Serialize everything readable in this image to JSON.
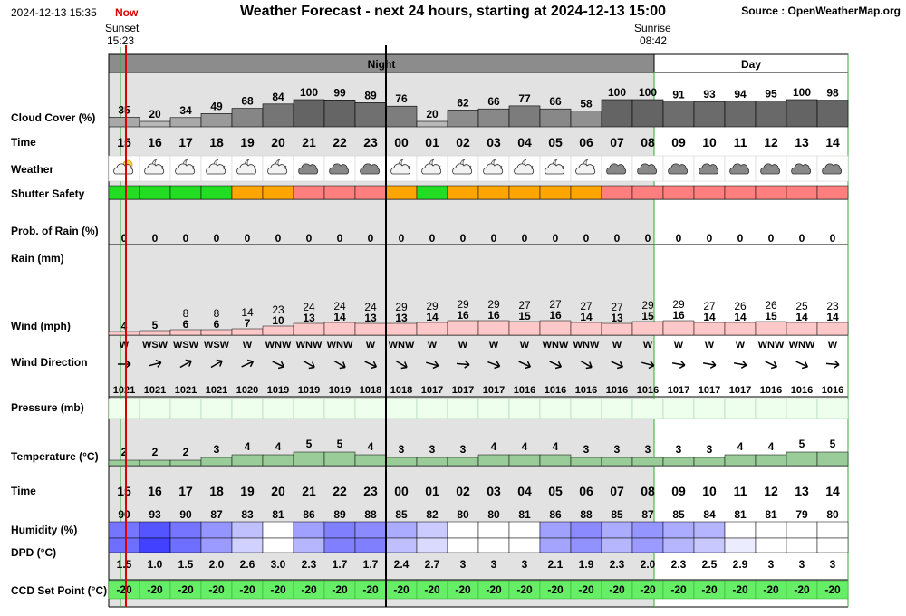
{
  "header": {
    "datetime": "2024-12-13 15:35",
    "now_label": "Now",
    "title": "Weather Forecast - next 24 hours, starting at 2024-12-13 15:00",
    "source": "Source : OpenWeatherMap.org",
    "sunset_label": "Sunset",
    "sunset_time": "15:23",
    "sunrise_label": "Sunrise",
    "sunrise_time": "08:42",
    "night_label": "Night",
    "day_label": "Day"
  },
  "row_labels": {
    "cloud": "Cloud Cover (%)",
    "time": "Time",
    "weather": "Weather",
    "shutter": "Shutter Safety",
    "rain_prob": "Prob. of Rain (%)",
    "rain": "Rain (mm)",
    "wind": "Wind (mph)",
    "wind_dir": "Wind Direction",
    "pressure": "Pressure (mb)",
    "temperature": "Temperature (°C)",
    "time2": "Time",
    "humidity": "Humidity (%)",
    "dpd": "DPD (°C)",
    "ccd": "CCD Set Point (°C)"
  },
  "colors": {
    "night_bg": "#e2e2e2",
    "band": "#8c8c8c",
    "safe": "#22dd22",
    "caution": "#ffa500",
    "unsafe": "#ff7f7f",
    "wind_bar": "#ffc8c8",
    "temp_bar": "#99cc99",
    "ccd": "#66ee66",
    "now_line": "#dd0000"
  },
  "hours": [
    "15",
    "16",
    "17",
    "18",
    "19",
    "20",
    "21",
    "22",
    "23",
    "00",
    "01",
    "02",
    "03",
    "04",
    "05",
    "06",
    "07",
    "08",
    "09",
    "10",
    "11",
    "12",
    "13",
    "14"
  ],
  "cloud": [
    35,
    20,
    34,
    49,
    68,
    84,
    100,
    99,
    89,
    76,
    20,
    62,
    66,
    77,
    66,
    58,
    100,
    100,
    91,
    93,
    94,
    95,
    100,
    98
  ],
  "weather_icon": [
    "sun-cloud",
    "moon-cloud",
    "moon-cloud",
    "moon-cloud",
    "moon-cloud",
    "moon-cloud",
    "cloud",
    "cloud",
    "cloud",
    "moon-cloud",
    "moon-cloud",
    "moon-cloud",
    "moon-cloud",
    "moon-cloud",
    "moon-cloud",
    "moon-cloud",
    "cloud",
    "cloud",
    "cloud",
    "cloud",
    "cloud",
    "cloud",
    "cloud",
    "cloud"
  ],
  "shutter": [
    "safe",
    "safe",
    "safe",
    "safe",
    "caution",
    "caution",
    "unsafe",
    "unsafe",
    "unsafe",
    "caution",
    "safe",
    "caution",
    "caution",
    "caution",
    "caution",
    "caution",
    "unsafe",
    "unsafe",
    "unsafe",
    "unsafe",
    "unsafe",
    "unsafe",
    "unsafe",
    "unsafe"
  ],
  "rain_prob": [
    "0",
    "0",
    "0",
    "0",
    "0",
    "0",
    "0",
    "0",
    "0",
    "0",
    "0",
    "0",
    "0",
    "0",
    "0",
    "0",
    "0",
    "0",
    "0",
    "0",
    "0",
    "0",
    "0",
    "0"
  ],
  "wind_gust": [
    "",
    "",
    "8",
    "8",
    "14",
    "23",
    "24",
    "24",
    "24",
    "29",
    "29",
    "29",
    "29",
    "27",
    "27",
    "27",
    "27",
    "29",
    "29",
    "27",
    "26",
    "26",
    "25",
    "23"
  ],
  "wind_speed": [
    4,
    5,
    6,
    6,
    7,
    10,
    13,
    14,
    13,
    13,
    14,
    16,
    16,
    15,
    16,
    14,
    13,
    15,
    16,
    14,
    14,
    15,
    14,
    14
  ],
  "wind_dir": [
    "W",
    "WSW",
    "WSW",
    "WSW",
    "W",
    "WNW",
    "WNW",
    "WNW",
    "W",
    "WNW",
    "W",
    "W",
    "W",
    "W",
    "WNW",
    "WNW",
    "W",
    "W",
    "W",
    "W",
    "W",
    "WNW",
    "WNW",
    "W"
  ],
  "wind_angle": [
    0,
    -15,
    -30,
    -30,
    -25,
    25,
    30,
    30,
    25,
    30,
    15,
    5,
    20,
    25,
    25,
    30,
    25,
    15,
    10,
    10,
    10,
    25,
    25,
    5
  ],
  "pressure": [
    "1021",
    "1021",
    "1021",
    "1021",
    "1020",
    "1019",
    "1019",
    "1019",
    "1018",
    "1018",
    "1017",
    "1017",
    "1017",
    "1016",
    "1016",
    "1016",
    "1016",
    "1016",
    "1017",
    "1017",
    "1017",
    "1016",
    "1016",
    "1016"
  ],
  "temperature": [
    2,
    2,
    2,
    3,
    4,
    4,
    5,
    5,
    4,
    3,
    3,
    3,
    4,
    4,
    4,
    3,
    3,
    3,
    3,
    3,
    4,
    4,
    5,
    5
  ],
  "humidity": [
    90,
    93,
    90,
    87,
    83,
    81,
    86,
    89,
    88,
    85,
    82,
    80,
    80,
    81,
    86,
    88,
    85,
    87,
    85,
    84,
    81,
    81,
    79,
    80
  ],
  "dpd": [
    "1.5",
    "1.0",
    "1.5",
    "2.0",
    "2.6",
    "3.0",
    "2.3",
    "1.7",
    "1.7",
    "2.4",
    "2.7",
    "3",
    "3",
    "3",
    "2.1",
    "1.9",
    "2.3",
    "2.0",
    "2.3",
    "2.5",
    "2.9",
    "3",
    "3",
    "3"
  ],
  "ccd": [
    "-20",
    "-20",
    "-20",
    "-20",
    "-20",
    "-20",
    "-20",
    "-20",
    "-20",
    "-20",
    "-20",
    "-20",
    "-20",
    "-20",
    "-20",
    "-20",
    "-20",
    "-20",
    "-20",
    "-20",
    "-20",
    "-20",
    "-20",
    "-20"
  ]
}
